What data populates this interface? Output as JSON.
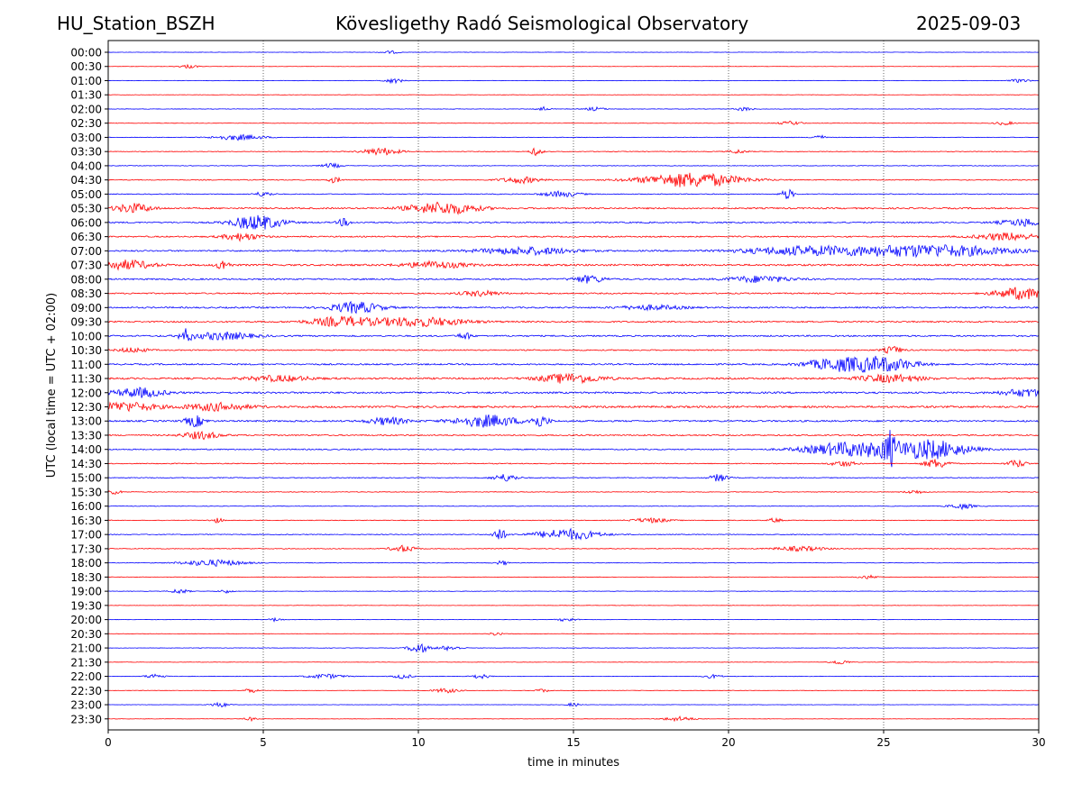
{
  "header": {
    "station": "HU_Station_BSZH",
    "title": "Kövesligethy Radó Seismological Observatory",
    "date": "2025-09-03"
  },
  "chart_data": {
    "type": "line",
    "title": "Kövesligethy Radó Seismological Observatory",
    "xlabel": "time in minutes",
    "ylabel": "UTC (local time = UTC + 02:00)",
    "xlim": [
      0,
      30
    ],
    "xticks": [
      0,
      5,
      10,
      15,
      20,
      25,
      30
    ],
    "vertical_gridlines_at": [
      5,
      10,
      15,
      20,
      25
    ],
    "trace_colors": [
      "#0000ff",
      "#ff0000"
    ],
    "rows": [
      {
        "label": "00:00",
        "noise": 0.12,
        "events": [
          [
            9.1,
            0.3,
            0.3
          ]
        ]
      },
      {
        "label": "00:30",
        "noise": 0.1,
        "events": [
          [
            2.6,
            0.4,
            0.3
          ]
        ]
      },
      {
        "label": "01:00",
        "noise": 0.14,
        "events": [
          [
            9.2,
            0.5,
            0.3
          ],
          [
            29.4,
            0.4,
            0.3
          ]
        ]
      },
      {
        "label": "01:30",
        "noise": 0.12,
        "events": []
      },
      {
        "label": "02:00",
        "noise": 0.16,
        "events": [
          [
            14.0,
            0.5,
            0.2
          ],
          [
            15.7,
            0.4,
            0.3
          ],
          [
            20.5,
            0.4,
            0.3
          ]
        ]
      },
      {
        "label": "02:30",
        "noise": 0.14,
        "events": [
          [
            22.0,
            0.4,
            0.4
          ],
          [
            28.9,
            0.4,
            0.3
          ]
        ]
      },
      {
        "label": "03:00",
        "noise": 0.18,
        "events": [
          [
            4.2,
            0.6,
            0.8
          ],
          [
            22.9,
            0.6,
            0.2
          ]
        ]
      },
      {
        "label": "03:30",
        "noise": 0.22,
        "events": [
          [
            8.8,
            0.8,
            0.6
          ],
          [
            13.8,
            0.8,
            0.2
          ],
          [
            20.3,
            0.4,
            0.3
          ]
        ]
      },
      {
        "label": "04:00",
        "noise": 0.2,
        "events": [
          [
            7.2,
            0.5,
            0.3
          ]
        ]
      },
      {
        "label": "04:30",
        "noise": 0.3,
        "events": [
          [
            13.3,
            0.7,
            0.6
          ],
          [
            18.8,
            1.6,
            1.6
          ],
          [
            7.3,
            0.6,
            0.2
          ]
        ]
      },
      {
        "label": "05:00",
        "noise": 0.28,
        "events": [
          [
            21.9,
            1.1,
            0.2
          ],
          [
            14.6,
            0.6,
            0.6
          ],
          [
            5.0,
            0.5,
            0.3
          ]
        ]
      },
      {
        "label": "05:30",
        "noise": 0.5,
        "events": [
          [
            0.8,
            1.0,
            0.6
          ],
          [
            10.8,
            1.3,
            1.1
          ]
        ]
      },
      {
        "label": "06:00",
        "noise": 0.45,
        "events": [
          [
            4.8,
            1.6,
            0.8
          ],
          [
            7.6,
            0.8,
            0.2
          ],
          [
            29.6,
            0.8,
            0.8
          ]
        ]
      },
      {
        "label": "06:30",
        "noise": 0.45,
        "events": [
          [
            4.3,
            0.8,
            0.6
          ],
          [
            29.0,
            0.8,
            1.0
          ]
        ]
      },
      {
        "label": "07:00",
        "noise": 0.5,
        "events": [
          [
            13.5,
            0.8,
            1.5
          ],
          [
            22.5,
            0.9,
            2.0
          ],
          [
            26.5,
            1.3,
            2.5
          ]
        ]
      },
      {
        "label": "07:30",
        "noise": 0.6,
        "events": [
          [
            0.6,
            1.0,
            0.8
          ],
          [
            3.7,
            1.2,
            0.2
          ],
          [
            10.5,
            0.7,
            1.0
          ]
        ]
      },
      {
        "label": "08:00",
        "noise": 0.5,
        "events": [
          [
            15.5,
            0.8,
            0.5
          ],
          [
            21.0,
            0.7,
            1.0
          ]
        ]
      },
      {
        "label": "08:30",
        "noise": 0.45,
        "events": [
          [
            12.0,
            0.6,
            0.6
          ],
          [
            29.4,
            1.3,
            0.8
          ]
        ]
      },
      {
        "label": "09:00",
        "noise": 0.5,
        "events": [
          [
            8.0,
            1.2,
            0.8
          ],
          [
            17.5,
            0.5,
            1.0
          ]
        ]
      },
      {
        "label": "09:30",
        "noise": 0.5,
        "events": [
          [
            7.5,
            1.0,
            1.0
          ],
          [
            10.0,
            1.0,
            1.5
          ]
        ]
      },
      {
        "label": "10:00",
        "noise": 0.5,
        "events": [
          [
            2.5,
            1.3,
            0.2
          ],
          [
            3.7,
            0.8,
            1.0
          ],
          [
            11.5,
            0.8,
            0.2
          ]
        ]
      },
      {
        "label": "10:30",
        "noise": 0.4,
        "events": [
          [
            25.3,
            0.8,
            0.3
          ],
          [
            0.8,
            0.5,
            0.5
          ]
        ]
      },
      {
        "label": "11:00",
        "noise": 0.5,
        "events": [
          [
            23.5,
            1.3,
            1.0
          ],
          [
            25.0,
            1.5,
            1.0
          ]
        ]
      },
      {
        "label": "11:30",
        "noise": 0.6,
        "events": [
          [
            14.9,
            1.0,
            1.0
          ],
          [
            25.2,
            0.8,
            1.0
          ],
          [
            5.5,
            0.6,
            1.0
          ]
        ]
      },
      {
        "label": "12:00",
        "noise": 0.6,
        "events": [
          [
            1.0,
            1.0,
            0.8
          ],
          [
            29.6,
            0.8,
            0.8
          ]
        ]
      },
      {
        "label": "12:30",
        "noise": 0.65,
        "events": [
          [
            0.5,
            1.0,
            1.0
          ],
          [
            3.5,
            0.8,
            1.0
          ]
        ]
      },
      {
        "label": "13:00",
        "noise": 0.55,
        "events": [
          [
            2.8,
            1.2,
            0.3
          ],
          [
            12.2,
            1.3,
            1.0
          ],
          [
            13.9,
            1.2,
            0.3
          ],
          [
            9.0,
            0.8,
            0.6
          ]
        ]
      },
      {
        "label": "13:30",
        "noise": 0.45,
        "events": [
          [
            3.0,
            0.8,
            0.6
          ]
        ]
      },
      {
        "label": "14:00",
        "noise": 0.4,
        "events": [
          [
            24.0,
            1.6,
            1.5
          ],
          [
            25.2,
            2.8,
            0.2
          ],
          [
            26.5,
            2.0,
            1.2
          ]
        ]
      },
      {
        "label": "14:30",
        "noise": 0.3,
        "events": [
          [
            26.7,
            1.0,
            0.4
          ],
          [
            29.3,
            0.8,
            0.3
          ],
          [
            23.7,
            0.6,
            0.4
          ]
        ]
      },
      {
        "label": "15:00",
        "noise": 0.28,
        "events": [
          [
            12.8,
            0.8,
            0.4
          ],
          [
            19.7,
            0.8,
            0.3
          ]
        ]
      },
      {
        "label": "15:30",
        "noise": 0.22,
        "events": [
          [
            0.2,
            0.6,
            0.2
          ],
          [
            26.0,
            0.4,
            0.3
          ]
        ]
      },
      {
        "label": "16:00",
        "noise": 0.2,
        "events": [
          [
            27.5,
            0.6,
            0.4
          ]
        ]
      },
      {
        "label": "16:30",
        "noise": 0.22,
        "events": [
          [
            17.5,
            0.5,
            0.6
          ],
          [
            3.5,
            0.5,
            0.2
          ],
          [
            21.5,
            0.5,
            0.2
          ]
        ]
      },
      {
        "label": "17:00",
        "noise": 0.28,
        "events": [
          [
            12.6,
            1.4,
            0.2
          ],
          [
            14.8,
            1.2,
            1.0
          ]
        ]
      },
      {
        "label": "17:30",
        "noise": 0.25,
        "events": [
          [
            9.5,
            0.7,
            0.4
          ],
          [
            22.3,
            0.5,
            0.8
          ]
        ]
      },
      {
        "label": "18:00",
        "noise": 0.18,
        "events": [
          [
            3.4,
            0.7,
            1.0
          ],
          [
            12.7,
            0.5,
            0.2
          ]
        ]
      },
      {
        "label": "18:30",
        "noise": 0.14,
        "events": [
          [
            24.5,
            0.4,
            0.3
          ]
        ]
      },
      {
        "label": "19:00",
        "noise": 0.14,
        "events": [
          [
            2.3,
            0.5,
            0.3
          ],
          [
            3.8,
            0.4,
            0.2
          ]
        ]
      },
      {
        "label": "19:30",
        "noise": 0.12,
        "events": []
      },
      {
        "label": "20:00",
        "noise": 0.12,
        "events": [
          [
            5.4,
            0.4,
            0.2
          ],
          [
            14.8,
            0.4,
            0.3
          ]
        ]
      },
      {
        "label": "20:30",
        "noise": 0.12,
        "events": [
          [
            12.5,
            0.4,
            0.2
          ]
        ]
      },
      {
        "label": "21:00",
        "noise": 0.14,
        "events": [
          [
            10.0,
            1.2,
            0.3
          ],
          [
            11.0,
            0.5,
            0.4
          ]
        ]
      },
      {
        "label": "21:30",
        "noise": 0.12,
        "events": [
          [
            23.6,
            0.5,
            0.3
          ]
        ]
      },
      {
        "label": "22:00",
        "noise": 0.16,
        "events": [
          [
            1.5,
            0.5,
            0.3
          ],
          [
            7.0,
            0.5,
            0.6
          ],
          [
            9.5,
            0.5,
            0.3
          ],
          [
            12.0,
            0.5,
            0.3
          ],
          [
            19.5,
            0.4,
            0.3
          ]
        ]
      },
      {
        "label": "22:30",
        "noise": 0.14,
        "events": [
          [
            4.6,
            0.5,
            0.2
          ],
          [
            10.9,
            0.5,
            0.4
          ],
          [
            14.0,
            0.4,
            0.2
          ]
        ]
      },
      {
        "label": "23:00",
        "noise": 0.12,
        "events": [
          [
            3.6,
            0.5,
            0.3
          ],
          [
            15.0,
            0.4,
            0.2
          ]
        ]
      },
      {
        "label": "23:30",
        "noise": 0.12,
        "events": [
          [
            4.6,
            0.4,
            0.2
          ],
          [
            18.4,
            0.5,
            0.5
          ]
        ]
      }
    ]
  }
}
